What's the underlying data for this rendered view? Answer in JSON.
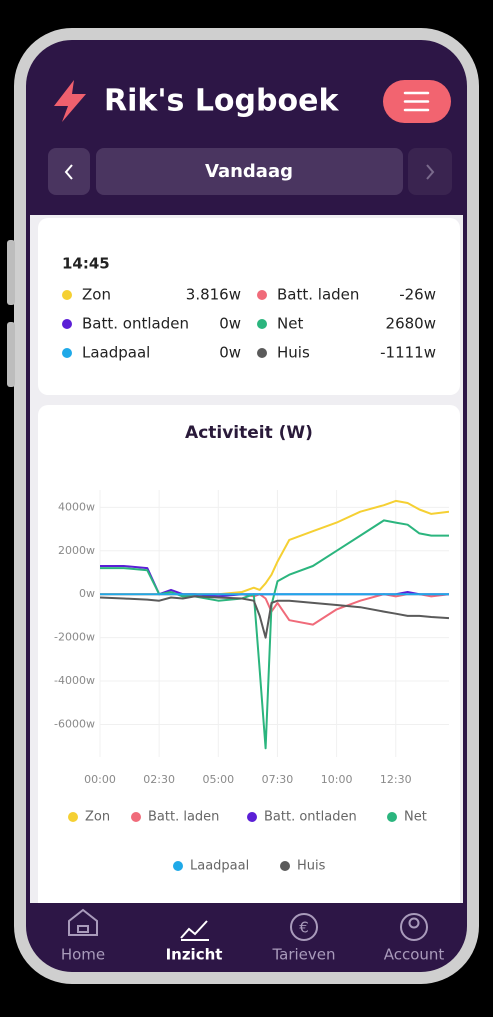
{
  "header": {
    "title": "Rik's Logboek"
  },
  "nav": {
    "label": "Vandaag"
  },
  "summary": {
    "time": "14:45",
    "items": [
      {
        "name": "Zon",
        "value": "3.816w",
        "color": "#f5d033"
      },
      {
        "name": "Batt. laden",
        "value": "-26w",
        "color": "#f06b7a"
      },
      {
        "name": "Batt. ontladen",
        "value": "0w",
        "color": "#5b1fd6"
      },
      {
        "name": "Net",
        "value": "2680w",
        "color": "#2bb57e"
      },
      {
        "name": "Laadpaal",
        "value": "0w",
        "color": "#1fa9e8"
      },
      {
        "name": "Huis",
        "value": "-1111w",
        "color": "#5a5a5a"
      }
    ]
  },
  "chart_data": {
    "type": "line",
    "title": "Activiteit (W)",
    "x": [
      0,
      1,
      2,
      2.5,
      3,
      3.5,
      4,
      5,
      6,
      6.5,
      6.75,
      7,
      7.25,
      7.5,
      8,
      9,
      10,
      11,
      12,
      12.5,
      13,
      13.5,
      14,
      14.75
    ],
    "xlim": [
      0,
      14.75
    ],
    "xticks": [
      {
        "value": 0,
        "label": "00:00"
      },
      {
        "value": 2.5,
        "label": "02:30"
      },
      {
        "value": 5,
        "label": "05:00"
      },
      {
        "value": 7.5,
        "label": "07:30"
      },
      {
        "value": 10,
        "label": "10:00"
      },
      {
        "value": 12.5,
        "label": "12:30"
      }
    ],
    "ylim": [
      -7500,
      4800
    ],
    "yticks": [
      {
        "value": -6000,
        "label": "-6000w"
      },
      {
        "value": -4000,
        "label": "-4000w"
      },
      {
        "value": -2000,
        "label": "-2000w"
      },
      {
        "value": 0,
        "label": "0w"
      },
      {
        "value": 2000,
        "label": "2000w"
      },
      {
        "value": 4000,
        "label": "4000w"
      }
    ],
    "grid": true,
    "series": [
      {
        "name": "Zon",
        "color": "#f5d033",
        "values": [
          0,
          0,
          0,
          0,
          0,
          0,
          0,
          0,
          100,
          300,
          200,
          500,
          900,
          1500,
          2500,
          2900,
          3300,
          3800,
          4100,
          4300,
          4200,
          3900,
          3700,
          3800
        ]
      },
      {
        "name": "Batt. laden",
        "color": "#f06b7a",
        "values": [
          0,
          0,
          0,
          0,
          0,
          0,
          0,
          0,
          0,
          -100,
          0,
          -200,
          -800,
          -400,
          -1200,
          -1400,
          -700,
          -300,
          0,
          -100,
          0,
          0,
          -100,
          0
        ]
      },
      {
        "name": "Batt. ontladen",
        "color": "#5b1fd6",
        "values": [
          1300,
          1300,
          1200,
          0,
          200,
          0,
          0,
          -100,
          0,
          0,
          0,
          0,
          0,
          0,
          0,
          0,
          0,
          0,
          0,
          0,
          100,
          0,
          0,
          0
        ]
      },
      {
        "name": "Net",
        "color": "#2bb57e",
        "values": [
          1200,
          1200,
          1100,
          0,
          100,
          -100,
          -100,
          -300,
          -200,
          0,
          -3500,
          -7100,
          -500,
          600,
          900,
          1300,
          2000,
          2700,
          3400,
          3300,
          3200,
          2800,
          2700,
          2700
        ]
      },
      {
        "name": "Laadpaal",
        "color": "#1fa9e8",
        "values": [
          0,
          0,
          0,
          0,
          0,
          0,
          0,
          0,
          0,
          0,
          0,
          0,
          0,
          0,
          0,
          0,
          0,
          0,
          0,
          0,
          0,
          0,
          0,
          0
        ]
      },
      {
        "name": "Huis",
        "color": "#5a5a5a",
        "values": [
          -150,
          -200,
          -250,
          -300,
          -150,
          -200,
          -100,
          -150,
          -200,
          -300,
          -1000,
          -2000,
          -400,
          -300,
          -300,
          -400,
          -500,
          -600,
          -800,
          -900,
          -1000,
          -1000,
          -1050,
          -1100
        ]
      }
    ]
  },
  "nav_bar": {
    "items": [
      "Home",
      "Inzicht",
      "Tarieven",
      "Account"
    ]
  }
}
